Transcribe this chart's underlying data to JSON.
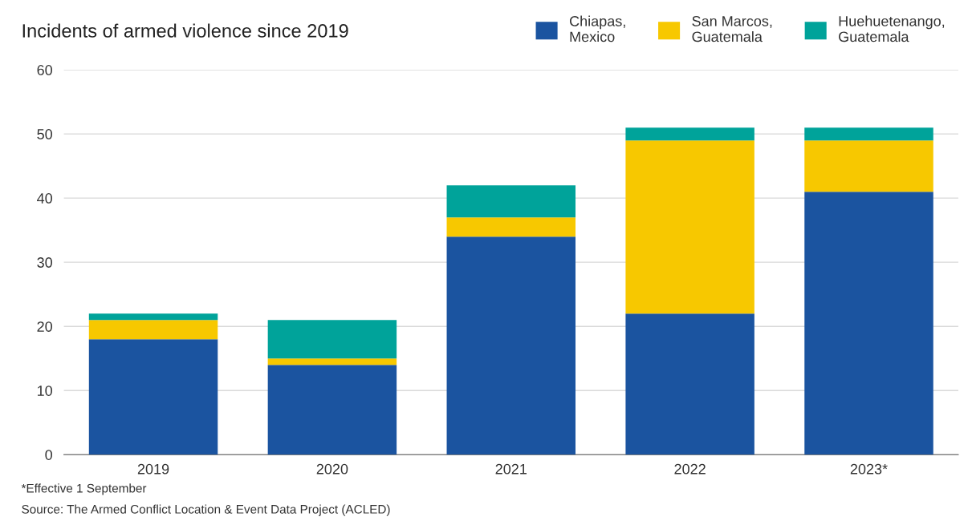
{
  "chart_data": {
    "type": "bar",
    "title": "Incidents of armed violence since 2019",
    "categories": [
      "2019",
      "2020",
      "2021",
      "2022",
      "2023*"
    ],
    "stacked": true,
    "series": [
      {
        "name": "Chiapas,\nMexico",
        "color": "#1b54a0",
        "values": [
          18,
          14,
          34,
          22,
          41
        ]
      },
      {
        "name": "San Marcos,\nGuatemala",
        "color": "#f7c800",
        "values": [
          3,
          1,
          3,
          27,
          8
        ]
      },
      {
        "name": "Huehuetenango,\nGuatemala",
        "color": "#00a39a",
        "values": [
          1,
          6,
          5,
          2,
          2
        ]
      }
    ],
    "ylim": [
      0,
      60
    ],
    "yticks": [
      0,
      10,
      20,
      30,
      40,
      50,
      60
    ],
    "grid": "y",
    "legend": "top right",
    "annotations": [
      "*Effective 1 September",
      "Source: The Armed Conflict Location & Event Data Project (ACLED)"
    ]
  }
}
